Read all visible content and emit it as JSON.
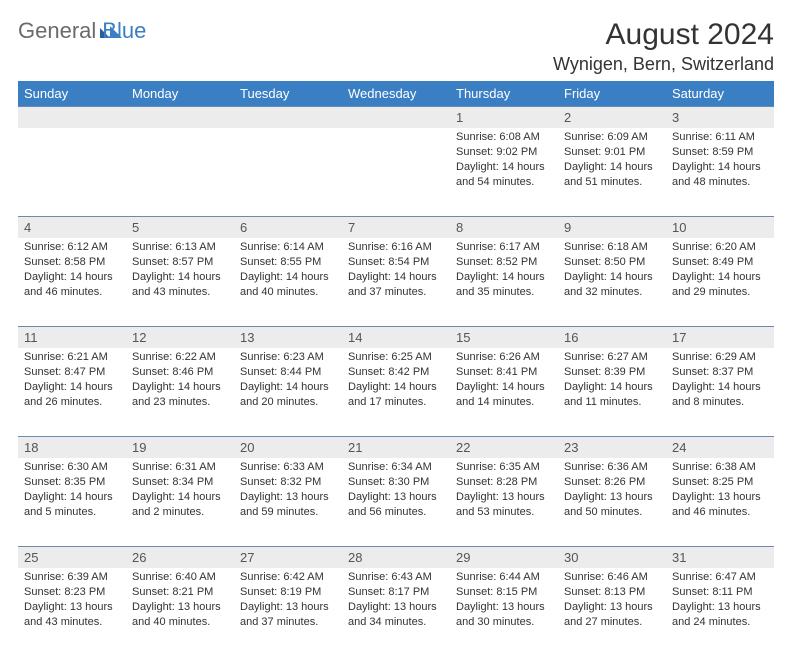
{
  "logo": {
    "text1": "General",
    "text2": "Blue"
  },
  "title": "August 2024",
  "location": "Wynigen, Bern, Switzerland",
  "colors": {
    "header_bg": "#3a7fc4",
    "header_text": "#ffffff",
    "daynum_bg": "#ececec",
    "border": "#6a8bb0",
    "text": "#333333",
    "logo_gray": "#6a6a6a",
    "logo_blue": "#3a7fc4"
  },
  "weekdays": [
    "Sunday",
    "Monday",
    "Tuesday",
    "Wednesday",
    "Thursday",
    "Friday",
    "Saturday"
  ],
  "weeks": [
    [
      null,
      null,
      null,
      null,
      {
        "d": "1",
        "sr": "Sunrise: 6:08 AM",
        "ss": "Sunset: 9:02 PM",
        "dl1": "Daylight: 14 hours",
        "dl2": "and 54 minutes."
      },
      {
        "d": "2",
        "sr": "Sunrise: 6:09 AM",
        "ss": "Sunset: 9:01 PM",
        "dl1": "Daylight: 14 hours",
        "dl2": "and 51 minutes."
      },
      {
        "d": "3",
        "sr": "Sunrise: 6:11 AM",
        "ss": "Sunset: 8:59 PM",
        "dl1": "Daylight: 14 hours",
        "dl2": "and 48 minutes."
      }
    ],
    [
      {
        "d": "4",
        "sr": "Sunrise: 6:12 AM",
        "ss": "Sunset: 8:58 PM",
        "dl1": "Daylight: 14 hours",
        "dl2": "and 46 minutes."
      },
      {
        "d": "5",
        "sr": "Sunrise: 6:13 AM",
        "ss": "Sunset: 8:57 PM",
        "dl1": "Daylight: 14 hours",
        "dl2": "and 43 minutes."
      },
      {
        "d": "6",
        "sr": "Sunrise: 6:14 AM",
        "ss": "Sunset: 8:55 PM",
        "dl1": "Daylight: 14 hours",
        "dl2": "and 40 minutes."
      },
      {
        "d": "7",
        "sr": "Sunrise: 6:16 AM",
        "ss": "Sunset: 8:54 PM",
        "dl1": "Daylight: 14 hours",
        "dl2": "and 37 minutes."
      },
      {
        "d": "8",
        "sr": "Sunrise: 6:17 AM",
        "ss": "Sunset: 8:52 PM",
        "dl1": "Daylight: 14 hours",
        "dl2": "and 35 minutes."
      },
      {
        "d": "9",
        "sr": "Sunrise: 6:18 AM",
        "ss": "Sunset: 8:50 PM",
        "dl1": "Daylight: 14 hours",
        "dl2": "and 32 minutes."
      },
      {
        "d": "10",
        "sr": "Sunrise: 6:20 AM",
        "ss": "Sunset: 8:49 PM",
        "dl1": "Daylight: 14 hours",
        "dl2": "and 29 minutes."
      }
    ],
    [
      {
        "d": "11",
        "sr": "Sunrise: 6:21 AM",
        "ss": "Sunset: 8:47 PM",
        "dl1": "Daylight: 14 hours",
        "dl2": "and 26 minutes."
      },
      {
        "d": "12",
        "sr": "Sunrise: 6:22 AM",
        "ss": "Sunset: 8:46 PM",
        "dl1": "Daylight: 14 hours",
        "dl2": "and 23 minutes."
      },
      {
        "d": "13",
        "sr": "Sunrise: 6:23 AM",
        "ss": "Sunset: 8:44 PM",
        "dl1": "Daylight: 14 hours",
        "dl2": "and 20 minutes."
      },
      {
        "d": "14",
        "sr": "Sunrise: 6:25 AM",
        "ss": "Sunset: 8:42 PM",
        "dl1": "Daylight: 14 hours",
        "dl2": "and 17 minutes."
      },
      {
        "d": "15",
        "sr": "Sunrise: 6:26 AM",
        "ss": "Sunset: 8:41 PM",
        "dl1": "Daylight: 14 hours",
        "dl2": "and 14 minutes."
      },
      {
        "d": "16",
        "sr": "Sunrise: 6:27 AM",
        "ss": "Sunset: 8:39 PM",
        "dl1": "Daylight: 14 hours",
        "dl2": "and 11 minutes."
      },
      {
        "d": "17",
        "sr": "Sunrise: 6:29 AM",
        "ss": "Sunset: 8:37 PM",
        "dl1": "Daylight: 14 hours",
        "dl2": "and 8 minutes."
      }
    ],
    [
      {
        "d": "18",
        "sr": "Sunrise: 6:30 AM",
        "ss": "Sunset: 8:35 PM",
        "dl1": "Daylight: 14 hours",
        "dl2": "and 5 minutes."
      },
      {
        "d": "19",
        "sr": "Sunrise: 6:31 AM",
        "ss": "Sunset: 8:34 PM",
        "dl1": "Daylight: 14 hours",
        "dl2": "and 2 minutes."
      },
      {
        "d": "20",
        "sr": "Sunrise: 6:33 AM",
        "ss": "Sunset: 8:32 PM",
        "dl1": "Daylight: 13 hours",
        "dl2": "and 59 minutes."
      },
      {
        "d": "21",
        "sr": "Sunrise: 6:34 AM",
        "ss": "Sunset: 8:30 PM",
        "dl1": "Daylight: 13 hours",
        "dl2": "and 56 minutes."
      },
      {
        "d": "22",
        "sr": "Sunrise: 6:35 AM",
        "ss": "Sunset: 8:28 PM",
        "dl1": "Daylight: 13 hours",
        "dl2": "and 53 minutes."
      },
      {
        "d": "23",
        "sr": "Sunrise: 6:36 AM",
        "ss": "Sunset: 8:26 PM",
        "dl1": "Daylight: 13 hours",
        "dl2": "and 50 minutes."
      },
      {
        "d": "24",
        "sr": "Sunrise: 6:38 AM",
        "ss": "Sunset: 8:25 PM",
        "dl1": "Daylight: 13 hours",
        "dl2": "and 46 minutes."
      }
    ],
    [
      {
        "d": "25",
        "sr": "Sunrise: 6:39 AM",
        "ss": "Sunset: 8:23 PM",
        "dl1": "Daylight: 13 hours",
        "dl2": "and 43 minutes."
      },
      {
        "d": "26",
        "sr": "Sunrise: 6:40 AM",
        "ss": "Sunset: 8:21 PM",
        "dl1": "Daylight: 13 hours",
        "dl2": "and 40 minutes."
      },
      {
        "d": "27",
        "sr": "Sunrise: 6:42 AM",
        "ss": "Sunset: 8:19 PM",
        "dl1": "Daylight: 13 hours",
        "dl2": "and 37 minutes."
      },
      {
        "d": "28",
        "sr": "Sunrise: 6:43 AM",
        "ss": "Sunset: 8:17 PM",
        "dl1": "Daylight: 13 hours",
        "dl2": "and 34 minutes."
      },
      {
        "d": "29",
        "sr": "Sunrise: 6:44 AM",
        "ss": "Sunset: 8:15 PM",
        "dl1": "Daylight: 13 hours",
        "dl2": "and 30 minutes."
      },
      {
        "d": "30",
        "sr": "Sunrise: 6:46 AM",
        "ss": "Sunset: 8:13 PM",
        "dl1": "Daylight: 13 hours",
        "dl2": "and 27 minutes."
      },
      {
        "d": "31",
        "sr": "Sunrise: 6:47 AM",
        "ss": "Sunset: 8:11 PM",
        "dl1": "Daylight: 13 hours",
        "dl2": "and 24 minutes."
      }
    ]
  ]
}
